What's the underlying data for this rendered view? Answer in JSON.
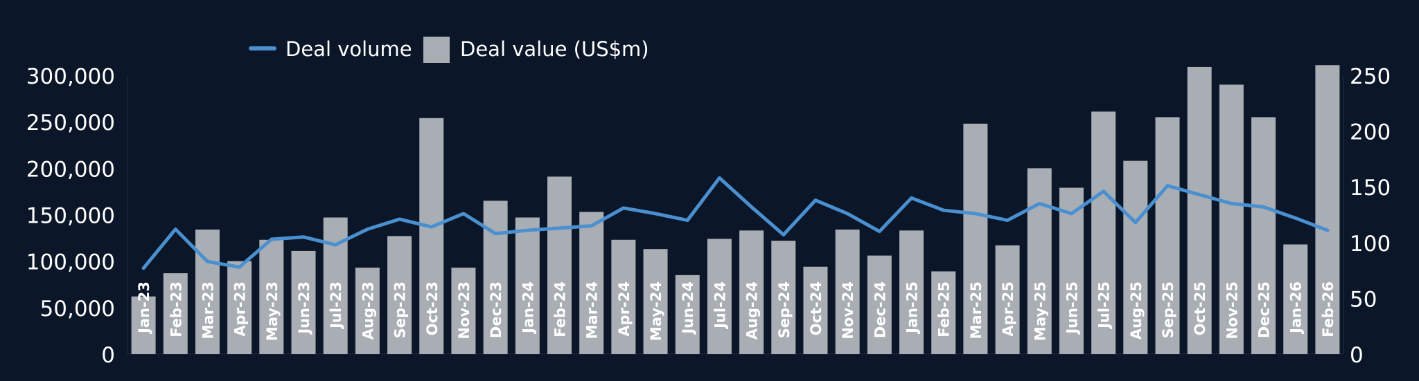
{
  "chart_data": {
    "type": "bar+line",
    "title": "",
    "colors": {
      "background": "#0b1628",
      "bar": "#a9aeb4",
      "line": "#4a90d0",
      "text": "#ffffff"
    },
    "legend": {
      "placement": "top",
      "entries": [
        "Deal volume",
        "Deal value (US$m)"
      ]
    },
    "categories": [
      "Jan-23",
      "Feb-23",
      "Mar-23",
      "Apr-23",
      "May-23",
      "Jun-23",
      "Jul-23",
      "Aug-23",
      "Sep-23",
      "Oct-23",
      "Nov-23",
      "Dec-23",
      "Jan-24",
      "Feb-24",
      "Mar-24",
      "Apr-24",
      "May-24",
      "Jun-24",
      "Jul-24",
      "Aug-24",
      "Sep-24",
      "Oct-24",
      "Nov-24",
      "Dec-24",
      "Jan-25",
      "Feb-25",
      "Mar-25",
      "Apr-25",
      "May-25",
      "Jun-25",
      "Jul-25",
      "Aug-25",
      "Sep-25",
      "Oct-25",
      "Nov-25",
      "Dec-25",
      "Jan-26",
      "Feb-26"
    ],
    "series": [
      {
        "name": "Deal value (US$m)",
        "type": "bar",
        "axis": "left",
        "values": [
          62000,
          87000,
          134000,
          100000,
          123000,
          111000,
          147000,
          93000,
          127000,
          254000,
          93000,
          165000,
          147000,
          191000,
          153000,
          123000,
          113000,
          85000,
          124000,
          133000,
          122000,
          94000,
          134000,
          106000,
          133000,
          89000,
          248000,
          117000,
          200000,
          179000,
          261000,
          208000,
          255000,
          309000,
          290000,
          255000,
          118000,
          311000
        ]
      },
      {
        "name": "Deal volume",
        "type": "line",
        "axis": "right",
        "values": [
          77,
          112,
          83,
          78,
          103,
          105,
          98,
          112,
          121,
          114,
          126,
          108,
          111,
          113,
          115,
          131,
          126,
          120,
          158,
          132,
          107,
          138,
          126,
          110,
          140,
          129,
          126,
          120,
          135,
          126,
          146,
          118,
          151,
          143,
          135,
          132,
          122,
          111
        ]
      }
    ],
    "left_axis": {
      "ylim": [
        0,
        300000
      ],
      "ticks": [
        "0",
        "50,000",
        "100,000",
        "150,000",
        "200,000",
        "250,000",
        "300,000"
      ]
    },
    "right_axis": {
      "ylim": [
        0,
        250
      ],
      "ticks": [
        "0",
        "50",
        "100",
        "150",
        "200",
        "250"
      ]
    },
    "grid": false
  }
}
